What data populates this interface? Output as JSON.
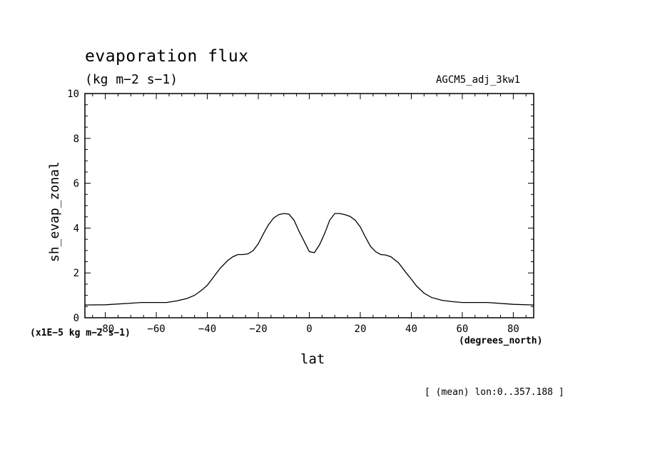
{
  "header": {
    "title": "evaporation flux",
    "units": "(kg m−2 s−1)",
    "run_name": "AGCM5_adj_3kw1"
  },
  "footer": {
    "note": "[ (mean) lon:0..357.188 ]"
  },
  "chart_data": {
    "type": "line",
    "title": "evaporation flux",
    "xlabel": "lat",
    "xunit": "(degrees_north)",
    "ylabel": "sh_evap_zonal",
    "yscale_note": "(x1E−5 kg m−2 s−1)",
    "xlim": [
      -88,
      88
    ],
    "ylim": [
      0,
      10
    ],
    "xticks": [
      -80,
      -60,
      -40,
      -20,
      0,
      20,
      40,
      60,
      80
    ],
    "yticks": [
      0,
      2,
      4,
      6,
      8,
      10
    ],
    "grid": false,
    "legend": "none",
    "series": [
      {
        "color": "#000000",
        "x": [
          -88,
          -80,
          -70,
          -66,
          -60,
          -56,
          -52,
          -48,
          -45,
          -42,
          -40,
          -38,
          -35,
          -32,
          -30,
          -28,
          -26,
          -24,
          -22,
          -20,
          -18,
          -16,
          -14,
          -12,
          -10,
          -8,
          -6,
          -4,
          -2,
          0,
          2,
          4,
          6,
          8,
          10,
          12,
          14,
          16,
          18,
          20,
          22,
          24,
          26,
          28,
          30,
          32,
          35,
          38,
          40,
          42,
          45,
          48,
          52,
          56,
          60,
          66,
          70,
          80,
          88
        ],
        "y": [
          0.57,
          0.58,
          0.65,
          0.68,
          0.68,
          0.68,
          0.75,
          0.86,
          1.0,
          1.25,
          1.45,
          1.75,
          2.2,
          2.55,
          2.72,
          2.82,
          2.82,
          2.85,
          3.0,
          3.3,
          3.75,
          4.15,
          4.45,
          4.6,
          4.65,
          4.62,
          4.35,
          3.85,
          3.4,
          2.95,
          2.9,
          3.25,
          3.75,
          4.35,
          4.65,
          4.65,
          4.6,
          4.52,
          4.35,
          4.05,
          3.6,
          3.18,
          2.95,
          2.82,
          2.8,
          2.72,
          2.45,
          2.0,
          1.72,
          1.42,
          1.1,
          0.9,
          0.78,
          0.72,
          0.68,
          0.68,
          0.68,
          0.6,
          0.57
        ]
      }
    ]
  }
}
